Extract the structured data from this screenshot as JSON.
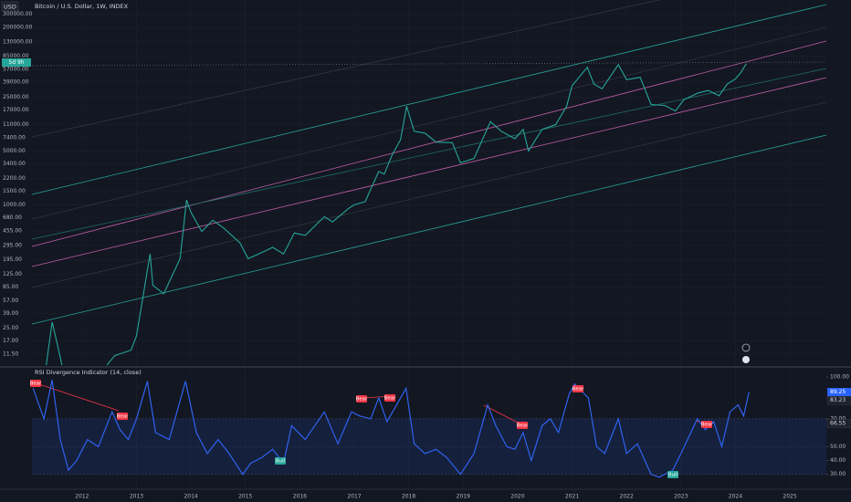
{
  "symbol_box": "USD",
  "countdown": "5d 9h",
  "chart_data": [
    {
      "type": "line",
      "title": "Bitcoin / U.S. Dollar, 1W, INDEX",
      "log_scale": true,
      "color": "#26a69a",
      "x": [
        2011.3,
        2011.45,
        2011.55,
        2011.7,
        2011.9,
        2012.2,
        2012.6,
        2012.9,
        2013.0,
        2013.25,
        2013.3,
        2013.5,
        2013.8,
        2013.92,
        2014.0,
        2014.2,
        2014.4,
        2014.6,
        2014.9,
        2015.05,
        2015.3,
        2015.5,
        2015.7,
        2015.9,
        2016.1,
        2016.45,
        2016.6,
        2016.9,
        2017.0,
        2017.2,
        2017.45,
        2017.55,
        2017.7,
        2017.85,
        2017.96,
        2018.1,
        2018.3,
        2018.5,
        2018.8,
        2018.95,
        2019.2,
        2019.5,
        2019.7,
        2019.95,
        2020.1,
        2020.2,
        2020.45,
        2020.7,
        2020.9,
        2021.0,
        2021.28,
        2021.4,
        2021.55,
        2021.85,
        2022.0,
        2022.25,
        2022.45,
        2022.7,
        2022.9,
        2023.05,
        2023.3,
        2023.5,
        2023.7,
        2023.85,
        2024.0,
        2024.1,
        2024.2
      ],
      "values": [
        5,
        30,
        15,
        5,
        3,
        5,
        11,
        13,
        20,
        230,
        90,
        70,
        200,
        1150,
        800,
        450,
        630,
        500,
        320,
        200,
        240,
        280,
        230,
        430,
        400,
        700,
        600,
        900,
        1000,
        1100,
        2700,
        2500,
        4500,
        7000,
        19000,
        9000,
        8500,
        6500,
        6400,
        3500,
        4000,
        12000,
        9000,
        7200,
        9500,
        5000,
        9500,
        11000,
        19000,
        35000,
        61000,
        37000,
        32000,
        66000,
        42000,
        45000,
        20000,
        19500,
        16500,
        23000,
        28000,
        30500,
        26000,
        37000,
        43000,
        52000,
        68000
      ],
      "xlim": [
        2011.08,
        2025.67
      ],
      "ylim": [
        8.3,
        455000
      ],
      "yticks": [
        {
          "value": 300000,
          "label": "300000.00"
        },
        {
          "value": 200000,
          "label": "200000.00"
        },
        {
          "value": 130000,
          "label": "130000.00"
        },
        {
          "value": 85000,
          "label": "85000.00"
        },
        {
          "value": 57000,
          "label": "57000.00"
        },
        {
          "value": 39000,
          "label": "39000.00"
        },
        {
          "value": 25000,
          "label": "25000.00"
        },
        {
          "value": 17000,
          "label": "17000.00"
        },
        {
          "value": 11000,
          "label": "11000.00"
        },
        {
          "value": 7400,
          "label": "7400.00"
        },
        {
          "value": 5000,
          "label": "5000.00"
        },
        {
          "value": 3400,
          "label": "3400.00"
        },
        {
          "value": 2200,
          "label": "2200.00"
        },
        {
          "value": 1500,
          "label": "1500.00"
        },
        {
          "value": 1000,
          "label": "1000.00"
        },
        {
          "value": 680,
          "label": "680.00"
        },
        {
          "value": 455,
          "label": "455.00"
        },
        {
          "value": 295,
          "label": "295.00"
        },
        {
          "value": 195,
          "label": "195.00"
        },
        {
          "value": 125,
          "label": "125.00"
        },
        {
          "value": 85,
          "label": "85.00"
        },
        {
          "value": 57,
          "label": "57.00"
        },
        {
          "value": 39,
          "label": "39.00"
        },
        {
          "value": 25,
          "label": "25.00"
        },
        {
          "value": 17,
          "label": "17.00"
        },
        {
          "value": 11.5,
          "label": "11.50"
        }
      ]
    },
    {
      "type": "line",
      "title": "RSI Divergence Indicator (14, close)",
      "color": "#2f62f0",
      "x": [
        2011.1,
        2011.3,
        2011.45,
        2011.6,
        2011.75,
        2011.9,
        2012.1,
        2012.3,
        2012.55,
        2012.7,
        2012.85,
        2013.0,
        2013.2,
        2013.35,
        2013.6,
        2013.9,
        2014.1,
        2014.3,
        2014.5,
        2014.7,
        2014.95,
        2015.1,
        2015.3,
        2015.5,
        2015.7,
        2015.85,
        2016.1,
        2016.45,
        2016.7,
        2016.95,
        2017.1,
        2017.3,
        2017.45,
        2017.6,
        2017.75,
        2017.95,
        2018.1,
        2018.3,
        2018.5,
        2018.7,
        2018.95,
        2019.2,
        2019.45,
        2019.6,
        2019.8,
        2019.95,
        2020.1,
        2020.25,
        2020.45,
        2020.6,
        2020.75,
        2020.95,
        2021.05,
        2021.3,
        2021.45,
        2021.6,
        2021.85,
        2022.0,
        2022.2,
        2022.45,
        2022.6,
        2022.85,
        2023.0,
        2023.3,
        2023.45,
        2023.6,
        2023.75,
        2023.9,
        2024.05,
        2024.15,
        2024.25
      ],
      "values": [
        92,
        70,
        98,
        55,
        33,
        40,
        55,
        50,
        75,
        62,
        55,
        70,
        97,
        60,
        55,
        97,
        60,
        45,
        55,
        45,
        30,
        38,
        42,
        48,
        38,
        65,
        55,
        75,
        52,
        75,
        72,
        70,
        85,
        68,
        78,
        92,
        52,
        45,
        48,
        42,
        30,
        45,
        80,
        65,
        50,
        48,
        60,
        40,
        65,
        70,
        60,
        88,
        95,
        85,
        50,
        45,
        70,
        45,
        52,
        30,
        28,
        33,
        45,
        70,
        62,
        68,
        50,
        75,
        80,
        72,
        89.25
      ],
      "side_values": [
        83.23,
        66.55
      ],
      "annotations": [
        "Bear",
        "Bear",
        "Bear",
        "Bear",
        "Bear",
        "Bear",
        "Bear",
        "Bull",
        "Bull"
      ],
      "band": [
        30,
        70
      ],
      "xlim": [
        2011.08,
        2025.67
      ],
      "ylim": [
        19.3,
        106
      ],
      "xticks": [
        2012,
        2013,
        2014,
        2015,
        2016,
        2017,
        2018,
        2019,
        2020,
        2021,
        2022,
        2023,
        2024,
        2025
      ],
      "yticks": [
        {
          "value": 100,
          "label": "100.00"
        },
        {
          "value": 70,
          "label": "70.00"
        },
        {
          "value": 50,
          "label": "50.00"
        },
        {
          "value": 40,
          "label": "40.00"
        },
        {
          "value": 30,
          "label": "30.00"
        }
      ]
    }
  ]
}
